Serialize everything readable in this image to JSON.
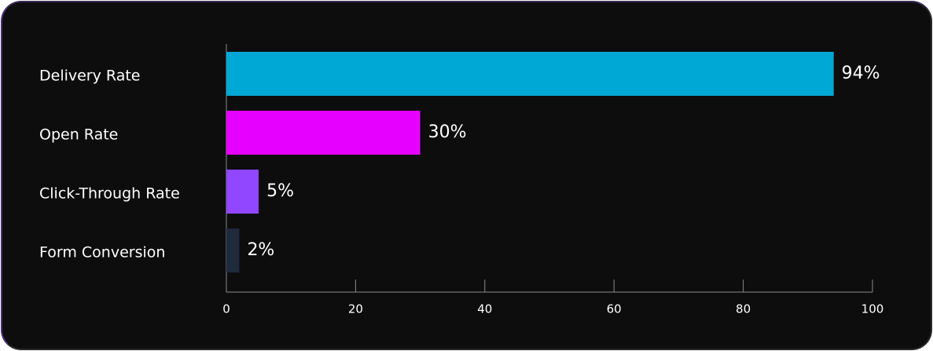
{
  "chart_data": {
    "type": "bar",
    "orientation": "horizontal",
    "categories": [
      "Delivery Rate",
      "Open Rate",
      "Click-Through Rate",
      "Form Conversion"
    ],
    "values": [
      94,
      30,
      5,
      2
    ],
    "value_labels": [
      "94%",
      "30%",
      "5%",
      "2%"
    ],
    "colors": [
      "#00a8d6",
      "#e600ff",
      "#9146ff",
      "#1f2a3d"
    ],
    "xlim": [
      0,
      100
    ],
    "xticks": [
      0,
      20,
      40,
      60,
      80,
      100
    ]
  }
}
